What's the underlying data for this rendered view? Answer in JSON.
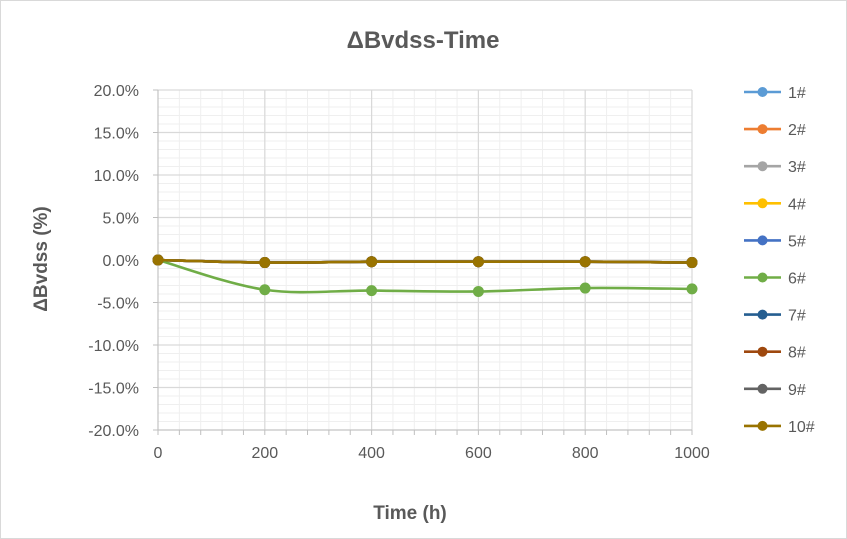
{
  "chart_data": {
    "type": "line",
    "title": "ΔBvdss-Time",
    "xlabel": "Time (h)",
    "ylabel": "ΔBvdss (%)",
    "x": [
      0,
      200,
      400,
      600,
      800,
      1000
    ],
    "xlim": [
      0,
      1000
    ],
    "xticks": [
      "0",
      "200",
      "400",
      "600",
      "800",
      "1000"
    ],
    "ylim": [
      -20,
      20
    ],
    "yticks": [
      "20.0%",
      "15.0%",
      "10.0%",
      "5.0%",
      "0.0%",
      "-5.0%",
      "-10.0%",
      "-15.0%",
      "-20.0%"
    ],
    "ytick_values": [
      20,
      15,
      10,
      5,
      0,
      -5,
      -10,
      -15,
      -20
    ],
    "grid": true,
    "smooth": true,
    "legend_position": "right",
    "series": [
      {
        "name": "1#",
        "color": "#5b9bd5",
        "values": [
          0,
          -0.3,
          -0.2,
          -0.2,
          -0.2,
          -0.3
        ]
      },
      {
        "name": "2#",
        "color": "#ed7d31",
        "values": [
          0,
          -0.3,
          -0.2,
          -0.2,
          -0.2,
          -0.3
        ]
      },
      {
        "name": "3#",
        "color": "#a5a5a5",
        "values": [
          0,
          -0.3,
          -0.2,
          -0.2,
          -0.2,
          -0.3
        ]
      },
      {
        "name": "4#",
        "color": "#ffc000",
        "values": [
          0,
          -0.3,
          -0.2,
          -0.2,
          -0.2,
          -0.3
        ]
      },
      {
        "name": "5#",
        "color": "#4472c4",
        "values": [
          0,
          -0.3,
          -0.2,
          -0.2,
          -0.2,
          -0.3
        ]
      },
      {
        "name": "6#",
        "color": "#70ad47",
        "values": [
          0,
          -3.5,
          -3.6,
          -3.7,
          -3.3,
          -3.4
        ]
      },
      {
        "name": "7#",
        "color": "#255e91",
        "values": [
          0,
          -0.3,
          -0.2,
          -0.2,
          -0.2,
          -0.3
        ]
      },
      {
        "name": "8#",
        "color": "#9e480e",
        "values": [
          0,
          -0.3,
          -0.2,
          -0.2,
          -0.2,
          -0.3
        ]
      },
      {
        "name": "9#",
        "color": "#636363",
        "values": [
          0,
          -0.3,
          -0.2,
          -0.2,
          -0.2,
          -0.3
        ]
      },
      {
        "name": "10#",
        "color": "#997300",
        "values": [
          0,
          -0.3,
          -0.2,
          -0.2,
          -0.2,
          -0.3
        ]
      }
    ]
  }
}
